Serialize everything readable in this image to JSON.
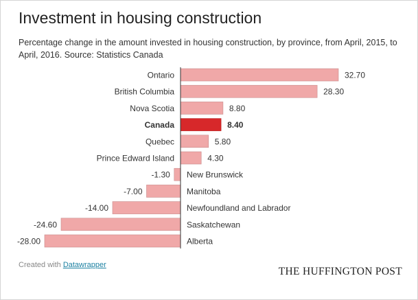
{
  "header": {
    "title": "Investment in housing construction",
    "subtitle": "Percentage change in the amount invested in housing construction, by province, from April, 2015, to April, 2016. Source: Statistics Canada"
  },
  "footer": {
    "created_prefix": "Created with ",
    "created_link": "Datawrapper",
    "brand": "THE HUFFINGTON POST"
  },
  "colors": {
    "bar": "#f0a8a8",
    "bar_highlight": "#d7282a",
    "bar_stroke": "#c98a8a",
    "axis": "#333333"
  },
  "chart_data": {
    "type": "bar",
    "orientation": "horizontal",
    "categories": [
      "Ontario",
      "British Columbia",
      "Nova Scotia",
      "Canada",
      "Quebec",
      "Prince Edward Island",
      "New Brunswick",
      "Manitoba",
      "Newfoundland and Labrador",
      "Saskatchewan",
      "Alberta"
    ],
    "values": [
      32.7,
      28.3,
      8.8,
      8.4,
      5.8,
      4.3,
      -1.3,
      -7.0,
      -14.0,
      -24.6,
      -28.0
    ],
    "value_labels": [
      "32.70",
      "28.30",
      "8.80",
      "8.40",
      "5.80",
      "4.30",
      "-1.30",
      "-7.00",
      "-14.00",
      "-24.60",
      "-28.00"
    ],
    "highlight": "Canada",
    "xlim": [
      -28.0,
      32.7
    ]
  }
}
